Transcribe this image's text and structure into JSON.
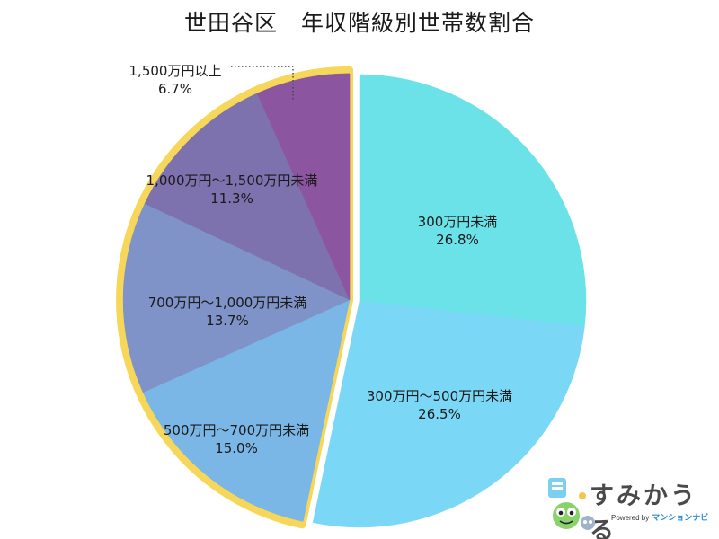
{
  "colors": {
    "highlight_outline": "#f7d759",
    "title_text": "#1a1a1a",
    "logo_text": "#4a4a4a",
    "logo_brand": "#2a8ad6"
  },
  "chart_data": {
    "type": "pie",
    "title": "世田谷区　年収階級別世帯数割合",
    "start": "12 o'clock",
    "direction": "clockwise",
    "unit": "%",
    "slices": [
      {
        "label": "300万円未満",
        "value": 26.8,
        "value_text": "26.8%",
        "color": "#6ae2e8",
        "highlighted": false
      },
      {
        "label": "300万円〜500万円未満",
        "value": 26.5,
        "value_text": "26.5%",
        "color": "#7ad8f6",
        "highlighted": false
      },
      {
        "label": "500万円〜700万円未満",
        "value": 15.0,
        "value_text": "15.0%",
        "color": "#7ab7e6",
        "highlighted": true
      },
      {
        "label": "700万円〜1,000万円未満",
        "value": 13.7,
        "value_text": "13.7%",
        "color": "#7f93c8",
        "highlighted": true
      },
      {
        "label": "1,000万円〜1,500万円未満",
        "value": 11.3,
        "value_text": "11.3%",
        "color": "#7d72ae",
        "highlighted": true
      },
      {
        "label": "1,500万円以上",
        "value": 6.7,
        "value_text": "6.7%",
        "color": "#8c55a0",
        "highlighted": true
      }
    ],
    "highlight": "outlined group of slices from 500万円〜700万円未満 to 1,500万円以上, pulled out from the pie",
    "legend": "none (labels inside slices; smallest slice labeled outside with a dotted leader line)"
  },
  "logo": {
    "text": "すみかうる",
    "powered_by": "Powered by",
    "brand": "マンションナビ"
  }
}
